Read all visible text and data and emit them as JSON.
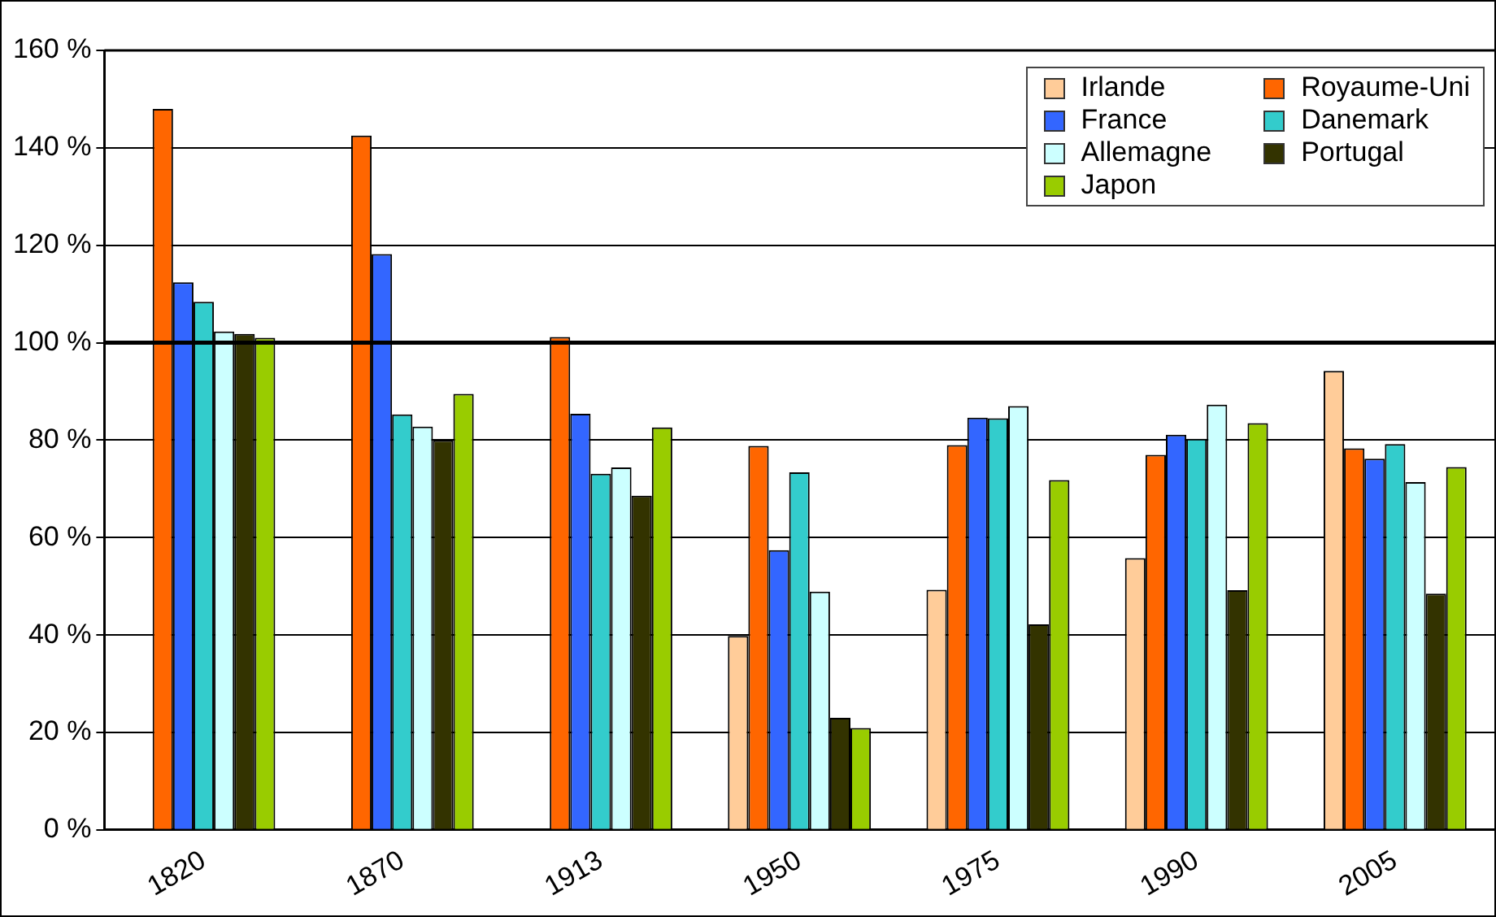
{
  "chart_data": {
    "type": "bar",
    "categories": [
      "1820",
      "1870",
      "1913",
      "1950",
      "1975",
      "1990",
      "2005"
    ],
    "series": [
      {
        "name": "Irlande",
        "color": "#ffcc99",
        "values": [
          null,
          null,
          null,
          39.8,
          49.3,
          55.8,
          94.2
        ]
      },
      {
        "name": "Royaume-Uni",
        "color": "#ff6600",
        "values": [
          148,
          142.5,
          101.2,
          78.8,
          79,
          77,
          78.3
        ]
      },
      {
        "name": "France",
        "color": "#3366ff",
        "values": [
          112.4,
          118.2,
          85.4,
          57.4,
          84.6,
          81.1,
          76.2
        ]
      },
      {
        "name": "Danemark",
        "color": "#33cccc",
        "values": [
          108.4,
          85.3,
          73.1,
          73.4,
          84.5,
          80.3,
          79.2
        ]
      },
      {
        "name": "Allemagne",
        "color": "#ccffff",
        "values": [
          102.3,
          82.8,
          74.4,
          48.9,
          87,
          87.3,
          71.4
        ]
      },
      {
        "name": "Portugal",
        "color": "#333300",
        "values": [
          101.8,
          80,
          68.6,
          23,
          42.2,
          49.2,
          48.5
        ]
      },
      {
        "name": "Japon",
        "color": "#99cc00",
        "values": [
          101,
          89.5,
          82.6,
          20.9,
          71.8,
          83.5,
          74.5
        ]
      }
    ],
    "ylim": [
      0,
      160
    ],
    "yticks": [
      {
        "value": 0,
        "label": "0 %"
      },
      {
        "value": 20,
        "label": "20 %"
      },
      {
        "value": 40,
        "label": "40 %"
      },
      {
        "value": 60,
        "label": "60 %"
      },
      {
        "value": 80,
        "label": "80 %"
      },
      {
        "value": 100,
        "label": "100 %"
      },
      {
        "value": 120,
        "label": "120 %"
      },
      {
        "value": 140,
        "label": "140 %"
      },
      {
        "value": 160,
        "label": "160 %"
      }
    ],
    "grid": "y",
    "legend": "top right",
    "ref_lines": [
      {
        "axis": "y",
        "value": 100,
        "color": "#000000"
      }
    ]
  }
}
